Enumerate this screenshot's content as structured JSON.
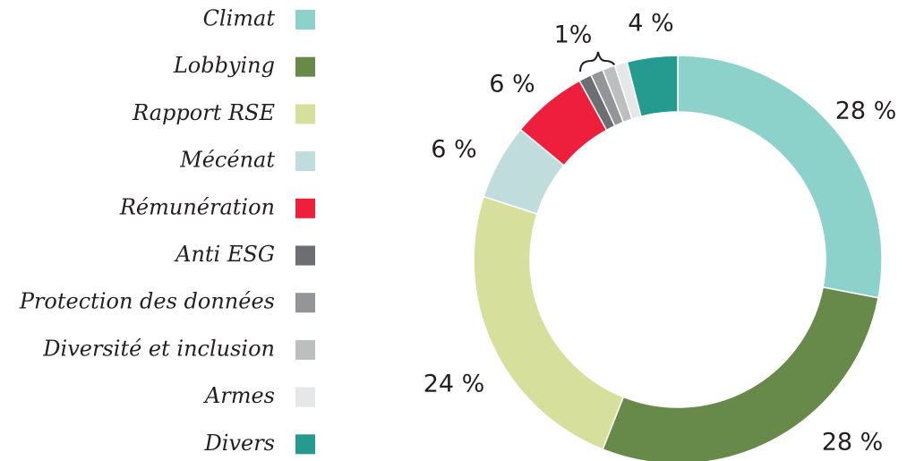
{
  "chart_data": {
    "type": "donut",
    "categories": [
      "Climat",
      "Lobbying",
      "Rapport RSE",
      "Mécénat",
      "Rémunération",
      "Anti ESG",
      "Protection des données",
      "Diversité et inclusion",
      "Armes",
      "Divers"
    ],
    "values": [
      28,
      28,
      24,
      6,
      6,
      1,
      1,
      1,
      1,
      4
    ],
    "value_labels": [
      "28 %",
      "28 %",
      "24 %",
      "6 %",
      "6 %",
      null,
      "1%",
      null,
      null,
      "4 %"
    ],
    "colors": [
      "#8dd1cb",
      "#67894a",
      "#d6e09c",
      "#c0dcdd",
      "#ee1f3c",
      "#6d6e71",
      "#939598",
      "#bcbec0",
      "#e6e7e8",
      "#259b8f"
    ]
  }
}
